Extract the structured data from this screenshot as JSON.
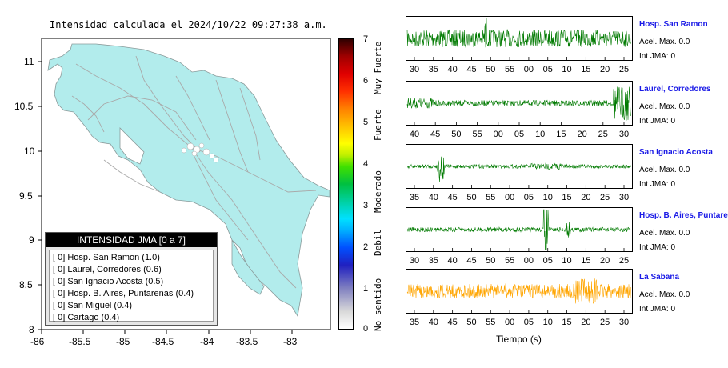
{
  "map": {
    "title": "Intensidad calculada el 2024/10/22_09:27:38_a.m.",
    "x_ticks": [
      "-86",
      "-85.5",
      "-85",
      "-84.5",
      "-84",
      "-83.5",
      "-83"
    ],
    "y_ticks": [
      "11",
      "10.5",
      "10",
      "9.5",
      "9",
      "8.5",
      "8"
    ],
    "land_color": "#b2ecec",
    "road_color": "#a9a9a9"
  },
  "colorbar": {
    "ticks": [
      "7",
      "6",
      "5",
      "4",
      "3",
      "2",
      "1",
      "0"
    ],
    "categories": [
      "Muy Fuerte",
      "Fuerte",
      "Moderado",
      "Debil",
      "No sentido"
    ]
  },
  "legend": {
    "title": "INTENSIDAD JMA [0 a 7]",
    "items": [
      "[ 0]  Hosp. San Ramon (1.0)",
      "[ 0]  Laurel, Corredores (0.6)",
      "[ 0]  San Ignacio Acosta (0.5)",
      "[ 0]  Hosp. B. Aires, Puntarenas (0.4)",
      "[ 0]  San Miguel (0.4)",
      "[ 0]  Cartago (0.4)"
    ]
  },
  "stations": [
    {
      "name": "Hosp. San Ramon",
      "acel": "Acel. Max. 0.0",
      "int": "Int JMA: 0",
      "color": "#007a00",
      "ticks": [
        "30",
        "35",
        "40",
        "45",
        "50",
        "55",
        "00",
        "05",
        "10",
        "15",
        "20",
        "25"
      ]
    },
    {
      "name": "Laurel, Corredores",
      "acel": "Acel. Max. 0.0",
      "int": "Int JMA: 0",
      "color": "#007a00",
      "ticks": [
        "40",
        "45",
        "50",
        "55",
        "00",
        "05",
        "10",
        "15",
        "20",
        "25",
        "30"
      ]
    },
    {
      "name": "San Ignacio Acosta",
      "acel": "Acel. Max. 0.0",
      "int": "Int JMA: 0",
      "color": "#007a00",
      "ticks": [
        "35",
        "40",
        "45",
        "50",
        "55",
        "00",
        "05",
        "10",
        "15",
        "20",
        "25",
        "30"
      ]
    },
    {
      "name": "Hosp. B. Aires, Puntare",
      "acel": "Acel. Max. 0.0",
      "int": "Int JMA: 0",
      "color": "#007a00",
      "ticks": [
        "30",
        "35",
        "40",
        "45",
        "50",
        "55",
        "00",
        "05",
        "10",
        "15",
        "20",
        "25"
      ]
    },
    {
      "name": "La Sabana",
      "acel": "Acel. Max. 0.0",
      "int": "Int JMA: 0",
      "color": "#ffa500",
      "ticks": [
        "35",
        "40",
        "45",
        "50",
        "55",
        "00",
        "05",
        "10",
        "15",
        "20",
        "25",
        "30"
      ]
    }
  ],
  "x_axis_label": "Tiempo (s)"
}
